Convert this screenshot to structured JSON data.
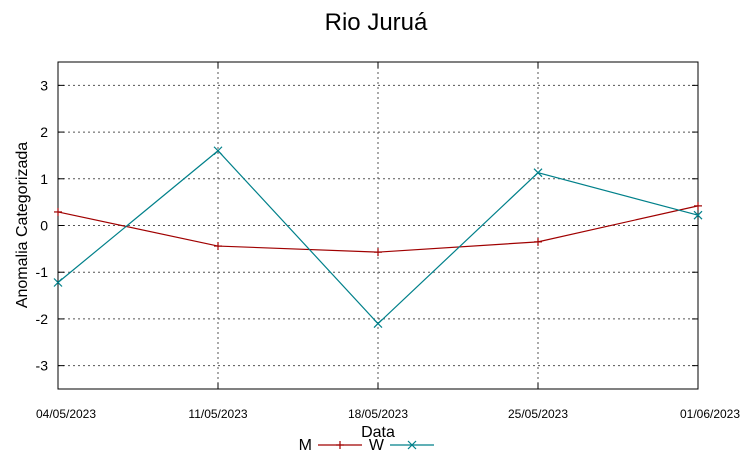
{
  "chart_data": {
    "type": "line",
    "title": "Rio Juruá",
    "xlabel": "Data",
    "ylabel": "Anomalia Categorizada",
    "categories": [
      "04/05/2023",
      "11/05/2023",
      "18/05/2023",
      "25/05/2023",
      "01/06/2023"
    ],
    "ylim": [
      -3.5,
      3.5
    ],
    "yticks": [
      "3",
      "2",
      "1",
      "0",
      "-1",
      "-2",
      "-3"
    ],
    "grid": true,
    "legend_position": "bottom-center",
    "series": [
      {
        "name": "M",
        "color": "#a00000",
        "values": [
          0.29,
          -0.44,
          -0.57,
          -0.35,
          0.42
        ]
      },
      {
        "name": "W",
        "color": "#00808a",
        "values": [
          -1.22,
          1.6,
          -2.1,
          1.13,
          0.22
        ]
      }
    ]
  }
}
